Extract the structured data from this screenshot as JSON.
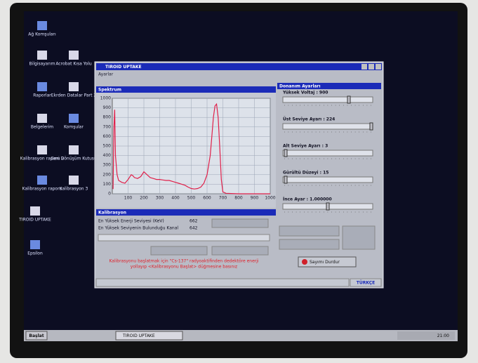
{
  "desktop_icons": [
    "Ağ Komşuları",
    "Bilgisayarım",
    "Acrobat Kısa Yolu",
    "Raporlar",
    "Ekrden Datalar Part 2",
    "Belgelerim",
    "Komşular",
    "Kalibrasyon raporu 2",
    "Geri Dönüşüm Kutusu",
    "Kalibrasyon raporu",
    "Kalibrasyon 3",
    "TIROID UPTAKE",
    "Epsilon"
  ],
  "window": {
    "title": "TIROID UPTAKE",
    "menu": "Ayarlar",
    "status": "TÜRKÇE"
  },
  "chart_data": {
    "type": "line",
    "title": "Spektrum",
    "x": [
      5,
      10,
      15,
      20,
      30,
      40,
      60,
      80,
      100,
      120,
      130,
      140,
      160,
      180,
      200,
      220,
      240,
      260,
      280,
      300,
      320,
      340,
      360,
      380,
      400,
      420,
      440,
      460,
      480,
      500,
      520,
      540,
      560,
      580,
      600,
      620,
      630,
      640,
      650,
      660,
      670,
      680,
      690,
      700,
      720,
      800,
      900,
      1000
    ],
    "series": [
      {
        "color": "#e0204a",
        "values": [
          50,
          700,
          880,
          400,
          200,
          140,
          120,
          110,
          150,
          200,
          190,
          170,
          160,
          180,
          230,
          200,
          170,
          160,
          150,
          150,
          145,
          140,
          140,
          130,
          120,
          110,
          100,
          90,
          70,
          55,
          50,
          55,
          70,
          110,
          200,
          400,
          600,
          800,
          920,
          940,
          800,
          500,
          150,
          20,
          5,
          0,
          0,
          0
        ]
      }
    ],
    "xlim": [
      0,
      1000
    ],
    "xticks": [
      100,
      200,
      300,
      400,
      500,
      600,
      700,
      800,
      900,
      1000
    ],
    "ylim": [
      0,
      1000
    ],
    "yticks": [
      0,
      100,
      200,
      300,
      400,
      500,
      600,
      700,
      800,
      900,
      1000
    ],
    "grid": true
  },
  "hardware": {
    "title": "Donanım Ayarları",
    "settings": [
      "Yüksek Voltaj : 900",
      "Üst Seviye Ayarı : 224",
      "Alt Seviye Ayarı : 3",
      "Gürültü Düzeyi : 15",
      "İnce Ayar : 1.000000"
    ],
    "stop_button": "Sayımı Durdur"
  },
  "calibration": {
    "title": "Kalibrasyon",
    "rows": [
      [
        "En Yüksek Enerji Seviyesi (KeV)",
        "662"
      ],
      [
        "En Yüksek Seviyenin Bulunduğu Kanal",
        "642"
      ]
    ],
    "message": [
      "Kalibrasyonu başlatmak için \"Cs-137\" radyoaktifinden dedektöre enerji",
      "yollayıp <Kalibrasyonu Başlat> düğmesine basınız"
    ]
  },
  "taskbar": {
    "start": "Başlat",
    "task": "TIROID UPTAKE",
    "clock": "21:00"
  }
}
